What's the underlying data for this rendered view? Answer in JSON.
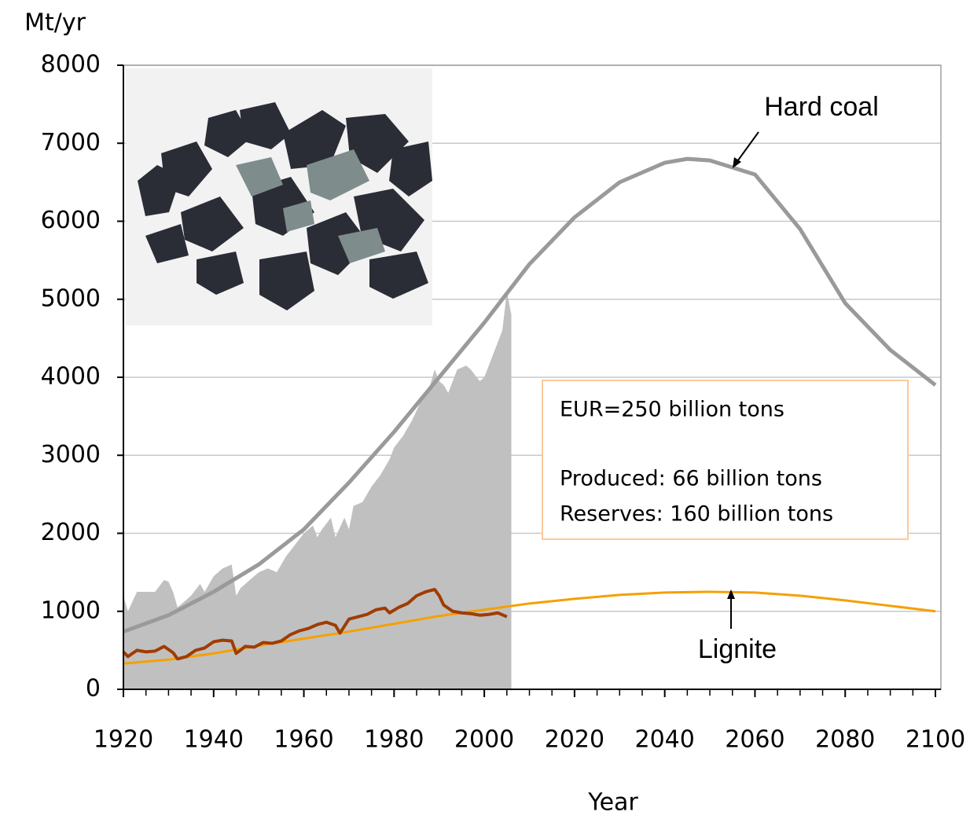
{
  "chart_data": {
    "type": "line",
    "y_label": "Mt/yr",
    "x_label": "Year",
    "xlim": [
      1920,
      2100
    ],
    "xticks": [
      1920,
      1940,
      1960,
      1980,
      2000,
      2020,
      2040,
      2060,
      2080,
      2100
    ],
    "ylim": [
      0,
      8000
    ],
    "yticks": [
      0,
      1000,
      2000,
      3000,
      4000,
      5000,
      6000,
      7000,
      8000
    ],
    "grid": true,
    "annotations": [
      "Hard coal",
      "Lignite",
      "EUR=250 billion tons",
      "Produced: 66 billion tons",
      "Reserves: 160 billion tons"
    ],
    "series": [
      {
        "style": "area",
        "color": "#c0c0c0",
        "x": [
          1920,
          1921,
          1923,
          1925,
          1927,
          1929,
          1930,
          1931,
          1932,
          1933,
          1935,
          1937,
          1938,
          1940,
          1942,
          1944,
          1945,
          1946,
          1948,
          1950,
          1952,
          1954,
          1956,
          1958,
          1960,
          1962,
          1963,
          1964,
          1966,
          1967,
          1969,
          1970,
          1971,
          1973,
          1975,
          1977,
          1979,
          1980,
          1982,
          1984,
          1986,
          1988,
          1989,
          1990,
          1991,
          1992,
          1994,
          1996,
          1997,
          1999,
          2000,
          2002,
          2004,
          2005,
          2006
        ],
        "values": [
          1200,
          1000,
          1250,
          1250,
          1250,
          1400,
          1380,
          1250,
          1050,
          1100,
          1200,
          1350,
          1250,
          1450,
          1550,
          1600,
          1200,
          1300,
          1400,
          1500,
          1550,
          1500,
          1700,
          1850,
          2000,
          2100,
          1950,
          2050,
          2200,
          1950,
          2200,
          2050,
          2350,
          2400,
          2600,
          2750,
          2950,
          3100,
          3250,
          3450,
          3700,
          3900,
          4100,
          3950,
          3900,
          3800,
          4100,
          4150,
          4100,
          3950,
          4000,
          4300,
          4600,
          5100,
          4800
        ]
      },
      {
        "style": "line",
        "color": "#9a9a9a",
        "width": 5,
        "x": [
          1920,
          1930,
          1940,
          1950,
          1960,
          1970,
          1980,
          1990,
          2000,
          2010,
          2020,
          2030,
          2040,
          2045,
          2050,
          2060,
          2070,
          2080,
          2090,
          2100
        ],
        "values": [
          740,
          950,
          1250,
          1600,
          2050,
          2650,
          3300,
          4000,
          4700,
          5450,
          6050,
          6500,
          6750,
          6800,
          6780,
          6600,
          5900,
          4950,
          4350,
          3900
        ]
      },
      {
        "style": "line",
        "color": "#f5a000",
        "width": 3,
        "x": [
          1920,
          1930,
          1940,
          1950,
          1960,
          1970,
          1980,
          1990,
          2000,
          2010,
          2020,
          2030,
          2040,
          2050,
          2060,
          2070,
          2080,
          2090,
          2100
        ],
        "values": [
          330,
          380,
          460,
          560,
          650,
          740,
          840,
          940,
          1020,
          1100,
          1160,
          1210,
          1240,
          1250,
          1240,
          1200,
          1140,
          1070,
          1000
        ]
      },
      {
        "style": "line",
        "color": "#a03c00",
        "width": 4,
        "x": [
          1920,
          1921,
          1923,
          1925,
          1927,
          1929,
          1931,
          1932,
          1934,
          1936,
          1938,
          1940,
          1942,
          1944,
          1945,
          1947,
          1949,
          1951,
          1953,
          1955,
          1957,
          1959,
          1961,
          1963,
          1965,
          1967,
          1968,
          1970,
          1972,
          1974,
          1976,
          1978,
          1979,
          1981,
          1983,
          1985,
          1987,
          1989,
          1990,
          1991,
          1993,
          1995,
          1997,
          1999,
          2001,
          2003,
          2005
        ],
        "values": [
          480,
          420,
          500,
          480,
          490,
          550,
          470,
          390,
          420,
          500,
          530,
          610,
          630,
          620,
          460,
          550,
          540,
          600,
          590,
          620,
          700,
          750,
          780,
          830,
          860,
          820,
          720,
          900,
          930,
          960,
          1020,
          1040,
          980,
          1050,
          1100,
          1200,
          1250,
          1280,
          1200,
          1080,
          1000,
          980,
          970,
          950,
          960,
          980,
          930
        ]
      }
    ]
  }
}
